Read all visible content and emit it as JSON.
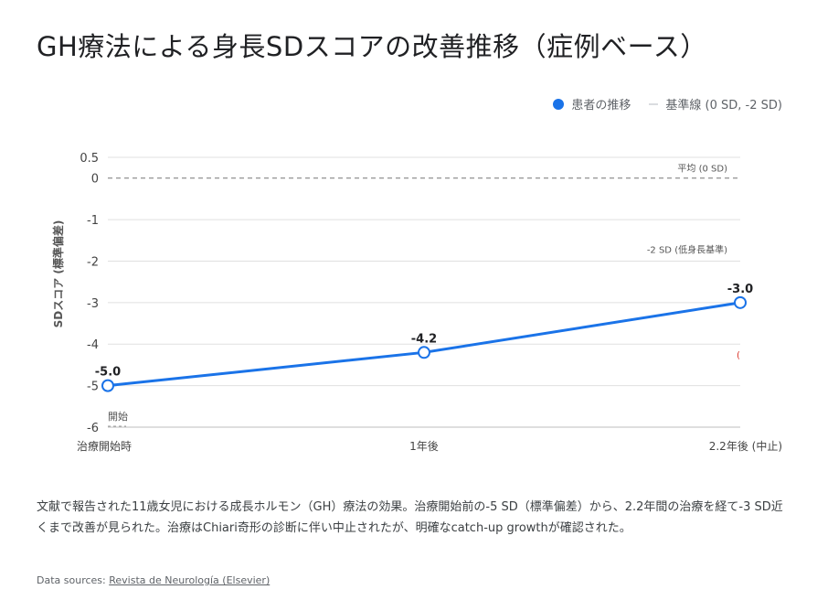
{
  "title": "GH療法による身長SDスコアの改善推移（症例ベース）",
  "legend": [
    {
      "label": "患者の推移",
      "color": "#1a73e8"
    },
    {
      "label": "基準線 (0 SD, -2 SD)",
      "color": "#dadce0"
    }
  ],
  "chart_data": {
    "type": "line",
    "categories": [
      "治療開始時",
      "1年後",
      "2.2年後 (中止)"
    ],
    "series": [
      {
        "name": "患者の推移",
        "values": [
          -5.0,
          -4.2,
          -3.0
        ],
        "labels": [
          "-5.0",
          "-4.2",
          "-3.0"
        ],
        "color": "#1a73e8"
      }
    ],
    "ylabel": "SDスコア (標準偏差)",
    "ylim": [
      -6,
      0.5
    ],
    "yticks": [
      0.5,
      0,
      -1,
      -2,
      -3,
      -4,
      -5,
      -6
    ],
    "ytick_labels": [
      "0.5",
      "0",
      "-1",
      "-2",
      "-3",
      "-4",
      "-5",
      "-6"
    ],
    "grid": true,
    "legend_position": "top-right",
    "reference_lines": [
      {
        "value": 0,
        "label": "平均 (0 SD)",
        "style": "dashed"
      },
      {
        "value": -2,
        "label": "-2 SD (低身長基準)",
        "style": "solid"
      }
    ],
    "annotations": [
      {
        "label": "開始",
        "x": "治療開始時"
      },
      {
        "label": "(",
        "color": "#d93025"
      }
    ]
  },
  "description": "文献で報告された11歳女児における成長ホルモン（GH）療法の効果。治療開始前の-5 SD（標準偏差）から、2.2年間の治療を経て-3 SD近くまで改善が見られた。治療はChiari奇形の診断に伴い中止されたが、明確なcatch-up growthが確認された。",
  "source": {
    "prefix": "Data sources: ",
    "link": "Revista de Neurología (Elsevier)"
  }
}
